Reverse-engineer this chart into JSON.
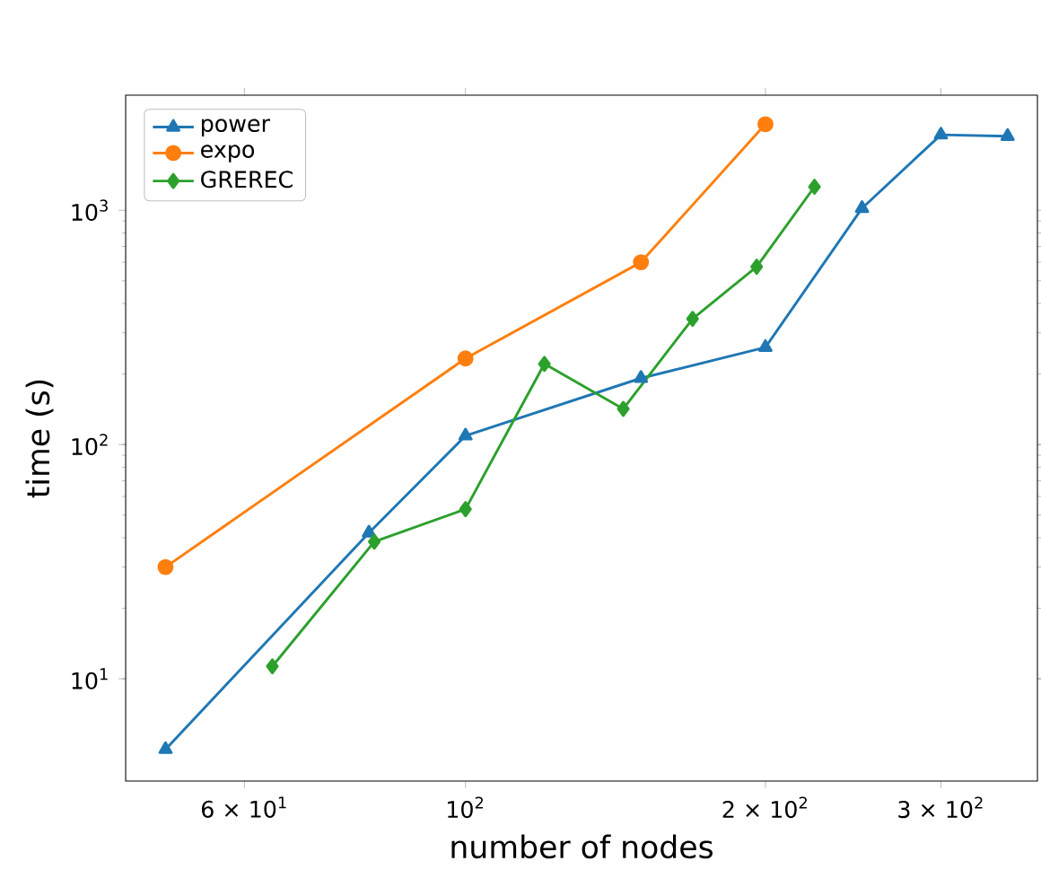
{
  "chart_data": {
    "type": "line",
    "xlabel": "number of nodes",
    "ylabel": "time (s)",
    "log": "xy",
    "legend": "top left",
    "grid": false,
    "xlim": [
      45.6,
      375
    ],
    "ylim": [
      3.66,
      3100
    ],
    "xticks": [
      {
        "value": 60,
        "label": "6 × 10$^{1}$"
      },
      {
        "value": 100,
        "label": "10$^{2}$"
      },
      {
        "value": 200,
        "label": "2 × 10$^{2}$"
      },
      {
        "value": 300,
        "label": "3 × 10$^{2}$"
      }
    ],
    "yticks": [
      {
        "value": 10,
        "label": "10$^{1}$"
      },
      {
        "value": 100,
        "label": "10$^{2}$"
      },
      {
        "value": 1000,
        "label": "10$^{3}$"
      }
    ],
    "series": [
      {
        "name": "power",
        "color": "#1f77b4",
        "marker": "triangle",
        "x": [
          50,
          80,
          100,
          150,
          200,
          250,
          300,
          350
        ],
        "values": [
          5.0,
          42,
          109,
          192,
          260,
          1020,
          2100,
          2070
        ]
      },
      {
        "name": "expo",
        "color": "#ff7f0e",
        "marker": "circle",
        "x": [
          50,
          100,
          150,
          200
        ],
        "values": [
          30,
          233,
          600,
          2330
        ]
      },
      {
        "name": "GREREC",
        "color": "#2ca02c",
        "marker": "diamond",
        "x": [
          64,
          81,
          100,
          120,
          144,
          169,
          196,
          224
        ],
        "values": [
          11.3,
          38.5,
          53,
          221,
          142,
          344,
          574,
          1260
        ]
      }
    ]
  }
}
